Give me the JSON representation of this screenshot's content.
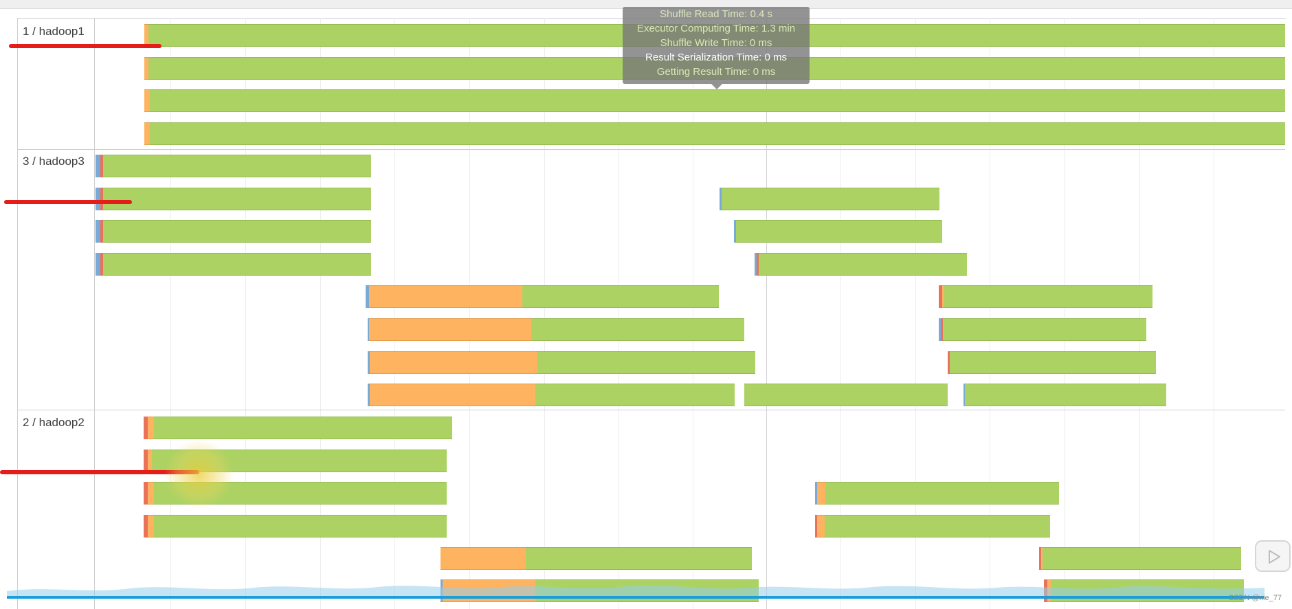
{
  "groups": [
    {
      "label": "1 / hadoop1"
    },
    {
      "label": "3 / hadoop3"
    },
    {
      "label": "2 / hadoop2"
    }
  ],
  "tooltip": {
    "lines": [
      "Shuffle Read Time: 0.4 s",
      "Executor Computing Time: 1.3 min",
      "Shuffle Write Time: 0 ms",
      "Result Serialization Time: 0 ms",
      "Getting Result Time: 0 ms"
    ]
  },
  "colors": {
    "executor_computing": "#acd264",
    "shuffle_read": "#fdb35f",
    "scheduler_delay": "#79a9d6",
    "deserialization": "#e8735a",
    "annotation_red": "#e41d18",
    "progress_blue": "#1a9ddb"
  },
  "icons": {
    "play": "play-icon"
  },
  "watermark": "CSDN @xie_77"
}
